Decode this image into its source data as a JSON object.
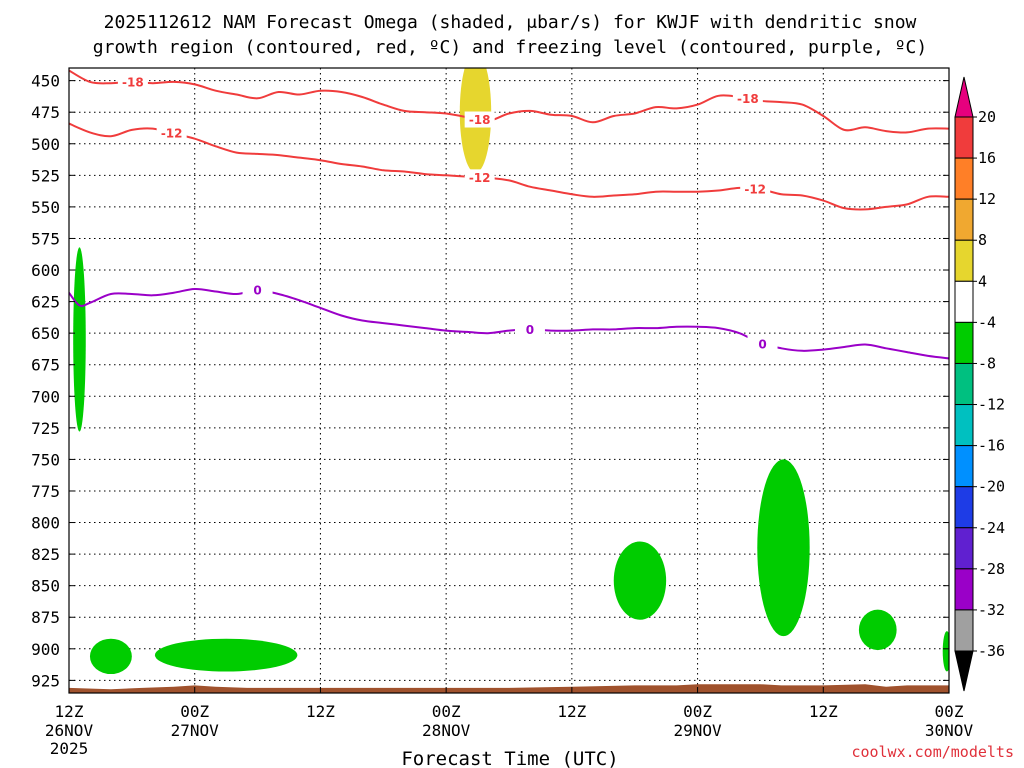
{
  "title_line1": "2025112612 NAM Forecast Omega (shaded, μbar/s) for KWJF with dendritic snow",
  "title_line2": "growth region (contoured, red, ºC) and freezing level (contoured, purple, ºC)",
  "credit": "coolwx.com/modelts",
  "colors": {
    "snow_contour": "#f03c3c",
    "freezing_contour": "#9a00c8",
    "omega_negative": "#00cc00",
    "omega_positive": "#e6d62e",
    "terrain": "#a0522d"
  },
  "chart_data": {
    "type": "heatmap",
    "title": "2025112612 NAM Forecast Omega (shaded, μbar/s) for KWJF with dendritic snow growth region (contoured, red, ºC) and freezing level (contoured, purple, ºC)",
    "xlabel": "Forecast Time (UTC)",
    "ylabel": "Pressure (mb)",
    "xlim": [
      0,
      84
    ],
    "ylim": [
      440,
      935
    ],
    "grid": true,
    "x_ticks": [
      {
        "hour": 0,
        "label": "12Z",
        "date": "26NOV",
        "year": "2025"
      },
      {
        "hour": 12,
        "label": "00Z",
        "date": "27NOV",
        "year": ""
      },
      {
        "hour": 24,
        "label": "12Z",
        "date": "",
        "year": ""
      },
      {
        "hour": 36,
        "label": "00Z",
        "date": "28NOV",
        "year": ""
      },
      {
        "hour": 48,
        "label": "12Z",
        "date": "",
        "year": ""
      },
      {
        "hour": 60,
        "label": "00Z",
        "date": "29NOV",
        "year": ""
      },
      {
        "hour": 72,
        "label": "12Z",
        "date": "",
        "year": ""
      },
      {
        "hour": 84,
        "label": "00Z",
        "date": "30NOV",
        "year": ""
      }
    ],
    "y_ticks": [
      450,
      475,
      500,
      525,
      550,
      575,
      600,
      625,
      650,
      675,
      700,
      725,
      750,
      775,
      800,
      825,
      850,
      875,
      900,
      925
    ],
    "colorbar": {
      "labels": [
        "20",
        "16",
        "12",
        "8",
        "4",
        "-4",
        "-8",
        "-12",
        "-16",
        "-20",
        "-24",
        "-28",
        "-32",
        "-36"
      ],
      "top_arrow_color": "#e6007e",
      "bottom_arrow_color": "#000000",
      "bins": [
        {
          "color": "#f03c3c"
        },
        {
          "color": "#ff7f27"
        },
        {
          "color": "#f0a830"
        },
        {
          "color": "#e6d62e"
        },
        {
          "color": "#ffffff"
        },
        {
          "color": "#00cc00"
        },
        {
          "color": "#00c080"
        },
        {
          "color": "#00c0c0"
        },
        {
          "color": "#0090ff"
        },
        {
          "color": "#1e3ce6"
        },
        {
          "color": "#6020d0"
        },
        {
          "color": "#9a00c8"
        },
        {
          "color": "#a0a0a0"
        }
      ]
    },
    "contours": [
      {
        "name": "-18 C isotherm",
        "label": "-18",
        "color": "#f03c3c",
        "label_hours": [
          6.1,
          39.2,
          64.8
        ],
        "points": [
          [
            0,
            442
          ],
          [
            2,
            451
          ],
          [
            4,
            452
          ],
          [
            6,
            451
          ],
          [
            8,
            452
          ],
          [
            10,
            451
          ],
          [
            12,
            453
          ],
          [
            14,
            458
          ],
          [
            16,
            461
          ],
          [
            18,
            464
          ],
          [
            20,
            459
          ],
          [
            22,
            461
          ],
          [
            24,
            458
          ],
          [
            26,
            459
          ],
          [
            28,
            463
          ],
          [
            30,
            469
          ],
          [
            32,
            474
          ],
          [
            34,
            475
          ],
          [
            36,
            476
          ],
          [
            38,
            479
          ],
          [
            40,
            482
          ],
          [
            42,
            476
          ],
          [
            44,
            474
          ],
          [
            46,
            477
          ],
          [
            48,
            478
          ],
          [
            50,
            483
          ],
          [
            52,
            478
          ],
          [
            54,
            476
          ],
          [
            56,
            471
          ],
          [
            58,
            472
          ],
          [
            60,
            469
          ],
          [
            62,
            462
          ],
          [
            64,
            463
          ],
          [
            66,
            466
          ],
          [
            68,
            467
          ],
          [
            70,
            469
          ],
          [
            72,
            478
          ],
          [
            74,
            489
          ],
          [
            76,
            487
          ],
          [
            78,
            490
          ],
          [
            80,
            491
          ],
          [
            82,
            488
          ],
          [
            84,
            488
          ]
        ]
      },
      {
        "name": "-12 C isotherm",
        "label": "-12",
        "color": "#f03c3c",
        "label_hours": [
          9.8,
          39.2,
          65.5
        ],
        "points": [
          [
            0,
            484
          ],
          [
            2,
            491
          ],
          [
            4,
            494
          ],
          [
            6,
            489
          ],
          [
            8,
            488
          ],
          [
            10,
            492
          ],
          [
            12,
            496
          ],
          [
            14,
            502
          ],
          [
            16,
            507
          ],
          [
            18,
            508
          ],
          [
            20,
            509
          ],
          [
            22,
            511
          ],
          [
            24,
            513
          ],
          [
            26,
            516
          ],
          [
            28,
            518
          ],
          [
            30,
            521
          ],
          [
            32,
            522
          ],
          [
            34,
            524
          ],
          [
            36,
            525
          ],
          [
            38,
            526
          ],
          [
            40,
            527
          ],
          [
            42,
            529
          ],
          [
            44,
            534
          ],
          [
            46,
            537
          ],
          [
            48,
            540
          ],
          [
            50,
            542
          ],
          [
            52,
            541
          ],
          [
            54,
            540
          ],
          [
            56,
            538
          ],
          [
            58,
            538
          ],
          [
            60,
            538
          ],
          [
            62,
            537
          ],
          [
            64,
            535
          ],
          [
            66,
            536
          ],
          [
            68,
            540
          ],
          [
            70,
            541
          ],
          [
            72,
            545
          ],
          [
            74,
            551
          ],
          [
            76,
            552
          ],
          [
            78,
            550
          ],
          [
            80,
            548
          ],
          [
            82,
            542
          ],
          [
            84,
            542
          ]
        ]
      },
      {
        "name": "0 C freezing level",
        "label": "0",
        "color": "#9a00c8",
        "label_hours": [
          18.0,
          44.0,
          66.2
        ],
        "points": [
          [
            0,
            618
          ],
          [
            1,
            628
          ],
          [
            2,
            626
          ],
          [
            4,
            619
          ],
          [
            6,
            619
          ],
          [
            8,
            620
          ],
          [
            10,
            618
          ],
          [
            12,
            615
          ],
          [
            14,
            617
          ],
          [
            16,
            619
          ],
          [
            18,
            616
          ],
          [
            20,
            619
          ],
          [
            22,
            624
          ],
          [
            24,
            630
          ],
          [
            26,
            636
          ],
          [
            28,
            640
          ],
          [
            30,
            642
          ],
          [
            32,
            644
          ],
          [
            34,
            646
          ],
          [
            36,
            648
          ],
          [
            38,
            649
          ],
          [
            40,
            650
          ],
          [
            42,
            648
          ],
          [
            44,
            647
          ],
          [
            46,
            648
          ],
          [
            48,
            648
          ],
          [
            50,
            647
          ],
          [
            52,
            647
          ],
          [
            54,
            646
          ],
          [
            56,
            646
          ],
          [
            58,
            645
          ],
          [
            60,
            645
          ],
          [
            62,
            646
          ],
          [
            64,
            650
          ],
          [
            66,
            658
          ],
          [
            68,
            662
          ],
          [
            70,
            664
          ],
          [
            72,
            663
          ],
          [
            74,
            661
          ],
          [
            76,
            659
          ],
          [
            78,
            662
          ],
          [
            80,
            665
          ],
          [
            82,
            668
          ],
          [
            84,
            670
          ]
        ]
      }
    ],
    "omega_regions": [
      {
        "omega_range": [
          -8,
          -4
        ],
        "center": [
          1.0,
          655
        ],
        "extent": [
          0.6,
          73
        ]
      },
      {
        "omega_range": [
          -8,
          -4
        ],
        "center": [
          4.0,
          906
        ],
        "extent": [
          2.0,
          14
        ]
      },
      {
        "omega_range": [
          -8,
          -4
        ],
        "center": [
          15.0,
          905
        ],
        "extent": [
          6.8,
          13
        ]
      },
      {
        "omega_range": [
          -8,
          -4
        ],
        "center": [
          54.5,
          846
        ],
        "extent": [
          2.5,
          31
        ]
      },
      {
        "omega_range": [
          -8,
          -4
        ],
        "center": [
          68.2,
          820
        ],
        "extent": [
          2.5,
          70
        ]
      },
      {
        "omega_range": [
          -8,
          -4
        ],
        "center": [
          77.2,
          885
        ],
        "extent": [
          1.8,
          16
        ]
      },
      {
        "omega_range": [
          -8,
          -4
        ],
        "center": [
          83.8,
          902
        ],
        "extent": [
          0.4,
          16
        ]
      },
      {
        "omega_range": [
          4,
          8
        ],
        "center": [
          38.8,
          475
        ],
        "extent": [
          1.5,
          48
        ]
      }
    ],
    "terrain": {
      "points": [
        [
          0,
          931
        ],
        [
          4,
          932
        ],
        [
          7,
          931
        ],
        [
          10,
          930
        ],
        [
          12,
          929
        ],
        [
          14,
          930
        ],
        [
          17,
          931
        ],
        [
          20,
          931
        ],
        [
          24,
          931
        ],
        [
          30,
          931
        ],
        [
          36,
          931
        ],
        [
          42,
          931
        ],
        [
          48,
          930
        ],
        [
          54,
          929
        ],
        [
          58,
          929
        ],
        [
          60,
          928
        ],
        [
          64,
          928
        ],
        [
          66,
          928
        ],
        [
          68,
          929
        ],
        [
          70,
          929
        ],
        [
          72,
          929
        ],
        [
          76,
          928
        ],
        [
          78,
          930
        ],
        [
          80,
          929
        ],
        [
          84,
          929
        ]
      ]
    }
  }
}
